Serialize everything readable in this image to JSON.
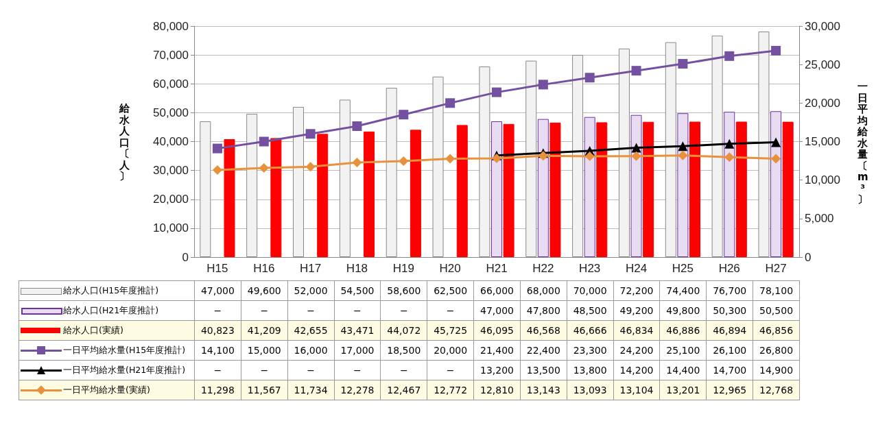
{
  "chart_data": {
    "type": "bar",
    "ylabel": "給水人口〔人〕",
    "y2label": "一日平均給水量〔m³〕",
    "categories": [
      "H15",
      "H16",
      "H17",
      "H18",
      "H19",
      "H20",
      "H21",
      "H22",
      "H23",
      "H24",
      "H25",
      "H26",
      "H27"
    ],
    "ylim": [
      0,
      80000
    ],
    "yticks": [
      {
        "value": 0,
        "label": "0"
      },
      {
        "value": 10000,
        "label": "10,000"
      },
      {
        "value": 20000,
        "label": "20,000"
      },
      {
        "value": 30000,
        "label": "30,000"
      },
      {
        "value": 40000,
        "label": "40,000"
      },
      {
        "value": 50000,
        "label": "50,000"
      },
      {
        "value": 60000,
        "label": "60,000"
      },
      {
        "value": 70000,
        "label": "70,000"
      },
      {
        "value": 80000,
        "label": "80,000"
      }
    ],
    "y2lim": [
      0,
      30000
    ],
    "y2ticks": [
      {
        "value": 0,
        "label": "0"
      },
      {
        "value": 5000,
        "label": "5,000"
      },
      {
        "value": 10000,
        "label": "10,000"
      },
      {
        "value": 15000,
        "label": "15,000"
      },
      {
        "value": 20000,
        "label": "20,000"
      },
      {
        "value": 25000,
        "label": "25,000"
      },
      {
        "value": 30000,
        "label": "30,000"
      }
    ],
    "grid": "y",
    "legend": "bottom",
    "series": [
      {
        "name": "給水人口(H15年度推計)",
        "color": "#f2f2f2",
        "values": [
          47000,
          49600,
          52000,
          54500,
          58600,
          62500,
          66000,
          68000,
          70000,
          72200,
          74400,
          76700,
          78100
        ],
        "value_labels": [
          "47,000",
          "49,600",
          "52,000",
          "54,500",
          "58,600",
          "62,500",
          "66,000",
          "68,000",
          "70,000",
          "72,200",
          "74,400",
          "76,700",
          "78,100"
        ]
      },
      {
        "name": "給水人口(H21年度推計)",
        "color": "#7030a0",
        "values": [
          null,
          null,
          null,
          null,
          null,
          null,
          47000,
          47800,
          48500,
          49200,
          49800,
          50300,
          50500
        ],
        "value_labels": [
          "−",
          "−",
          "−",
          "−",
          "−",
          "−",
          "47,000",
          "47,800",
          "48,500",
          "49,200",
          "49,800",
          "50,300",
          "50,500"
        ]
      },
      {
        "name": "給水人口(実績)",
        "color": "#ff0000",
        "values": [
          40823,
          41209,
          42655,
          43471,
          44072,
          45725,
          46095,
          46568,
          46666,
          46834,
          46886,
          46894,
          46856
        ],
        "value_labels": [
          "40,823",
          "41,209",
          "42,655",
          "43,471",
          "44,072",
          "45,725",
          "46,095",
          "46,568",
          "46,666",
          "46,834",
          "46,886",
          "46,894",
          "46,856"
        ]
      },
      {
        "name": "一日平均給水量(H15年度推計)",
        "type": "line",
        "axis": "y2",
        "marker": "square",
        "color": "#7451a0",
        "values": [
          14100,
          15000,
          16000,
          17000,
          18500,
          20000,
          21400,
          22400,
          23300,
          24200,
          25100,
          26100,
          26800
        ],
        "value_labels": [
          "14,100",
          "15,000",
          "16,000",
          "17,000",
          "18,500",
          "20,000",
          "21,400",
          "22,400",
          "23,300",
          "24,200",
          "25,100",
          "26,100",
          "26,800"
        ]
      },
      {
        "name": "一日平均給水量(H21年度推計)",
        "type": "line",
        "axis": "y2",
        "marker": "triangle",
        "color": "#000000",
        "values": [
          null,
          null,
          null,
          null,
          null,
          null,
          13200,
          13500,
          13800,
          14200,
          14400,
          14700,
          14900
        ],
        "value_labels": [
          "−",
          "−",
          "−",
          "−",
          "−",
          "−",
          "13,200",
          "13,500",
          "13,800",
          "14,200",
          "14,400",
          "14,700",
          "14,900"
        ]
      },
      {
        "name": "一日平均給水量(実績)",
        "type": "line",
        "axis": "y2",
        "marker": "diamond",
        "color": "#e8913a",
        "values": [
          11298,
          11567,
          11734,
          12278,
          12467,
          12772,
          12810,
          13143,
          13093,
          13104,
          13201,
          12965,
          12768
        ],
        "value_labels": [
          "11,298",
          "11,567",
          "11,734",
          "12,278",
          "12,467",
          "12,772",
          "12,810",
          "13,143",
          "13,093",
          "13,104",
          "13,201",
          "12,965",
          "12,768"
        ]
      }
    ]
  }
}
